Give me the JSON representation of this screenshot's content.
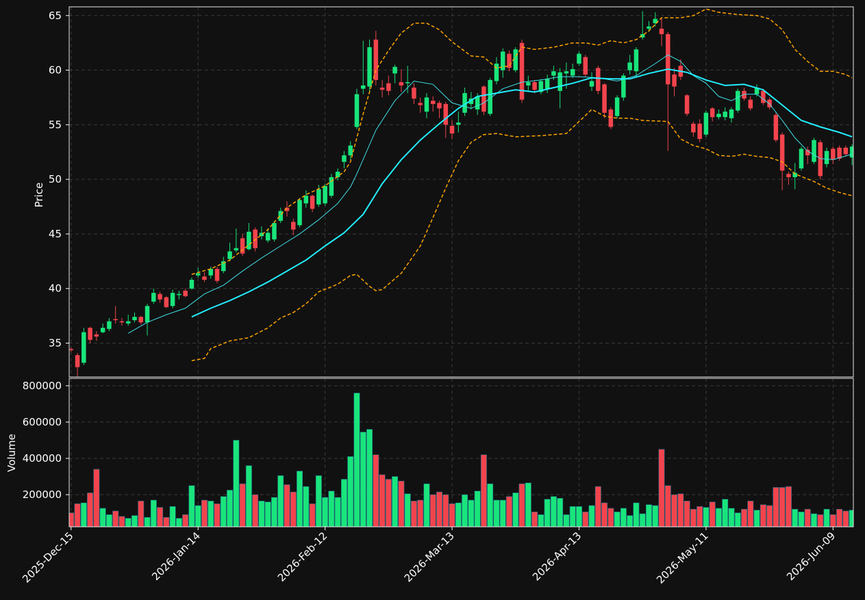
{
  "chart_data": {
    "type": "candlestick",
    "up_color": "#19e57b",
    "down_color": "#f2444d",
    "grid": true,
    "xlim": [
      -0.3,
      123.2
    ],
    "xticks": [
      {
        "value": 0,
        "label": "2025-Dec-15"
      },
      {
        "value": 20,
        "label": "2026-Jan-14"
      },
      {
        "value": 40,
        "label": "2026-Feb-12"
      },
      {
        "value": 60,
        "label": "2026-Mar-13"
      },
      {
        "value": 80,
        "label": "2026-Apr-13"
      },
      {
        "value": 100,
        "label": "2026-May-11"
      },
      {
        "value": 120,
        "label": "2026-Jun-09"
      }
    ],
    "x": [
      0,
      1,
      2,
      3,
      4,
      5,
      6,
      7,
      8,
      9,
      10,
      11,
      12,
      13,
      14,
      15,
      16,
      17,
      18,
      19,
      20,
      21,
      22,
      23,
      24,
      25,
      26,
      27,
      28,
      29,
      30,
      31,
      32,
      33,
      34,
      35,
      36,
      37,
      38,
      39,
      40,
      41,
      42,
      43,
      44,
      45,
      46,
      47,
      48,
      49,
      50,
      51,
      52,
      53,
      54,
      55,
      56,
      57,
      58,
      59,
      60,
      61,
      62,
      63,
      64,
      65,
      66,
      67,
      68,
      69,
      70,
      71,
      72,
      73,
      74,
      75,
      76,
      77,
      78,
      79,
      80,
      81,
      82,
      83,
      84,
      85,
      86,
      87,
      88,
      89,
      90,
      91,
      92,
      93,
      94,
      95,
      96,
      97,
      98,
      99,
      100,
      101,
      102,
      103,
      104,
      105,
      106,
      107,
      108,
      109,
      110,
      111,
      112,
      113,
      114,
      115,
      116,
      117,
      118,
      119,
      120,
      121,
      122,
      123
    ],
    "price": {
      "ylabel": "Price",
      "ylim": [
        31.9,
        65.8
      ],
      "yticks": [
        35,
        40,
        45,
        50,
        55,
        60,
        65
      ]
    },
    "ohlc": [
      [
        34.45,
        34.6,
        34.2,
        34.35
      ],
      [
        33.9,
        34.1,
        31.9,
        32.8
      ],
      [
        33.2,
        36.4,
        33.0,
        36.0
      ],
      [
        36.4,
        36.5,
        35.0,
        35.3
      ],
      [
        35.8,
        36.1,
        35.2,
        35.6
      ],
      [
        36.0,
        36.8,
        35.9,
        36.4
      ],
      [
        36.3,
        37.3,
        36.1,
        37.0
      ],
      [
        37.2,
        38.4,
        36.8,
        37.1
      ],
      [
        37.0,
        37.3,
        36.6,
        36.9
      ],
      [
        36.8,
        37.6,
        36.6,
        37.0
      ],
      [
        37.1,
        37.8,
        36.9,
        37.4
      ],
      [
        37.4,
        37.5,
        36.7,
        36.9
      ],
      [
        36.9,
        38.6,
        35.7,
        38.4
      ],
      [
        38.8,
        40.0,
        38.6,
        39.6
      ],
      [
        39.5,
        39.7,
        38.7,
        39.0
      ],
      [
        39.2,
        39.3,
        38.2,
        38.3
      ],
      [
        38.4,
        39.9,
        38.2,
        39.6
      ],
      [
        39.4,
        39.8,
        39.0,
        39.5
      ],
      [
        39.8,
        40.0,
        39.2,
        39.3
      ],
      [
        40.0,
        41.0,
        39.9,
        40.8
      ],
      [
        41.2,
        41.9,
        41.0,
        41.4
      ],
      [
        41.1,
        41.5,
        40.6,
        40.8
      ],
      [
        41.2,
        42.0,
        40.9,
        41.8
      ],
      [
        41.8,
        42.0,
        40.5,
        40.7
      ],
      [
        41.6,
        42.9,
        41.4,
        42.5
      ],
      [
        42.7,
        44.2,
        42.5,
        43.4
      ],
      [
        43.5,
        45.5,
        43.3,
        43.7
      ],
      [
        44.6,
        45.0,
        43.0,
        43.2
      ],
      [
        43.6,
        46.0,
        43.5,
        45.2
      ],
      [
        45.4,
        45.6,
        43.4,
        43.7
      ],
      [
        44.8,
        45.7,
        44.5,
        45.1
      ],
      [
        44.4,
        45.5,
        44.2,
        45.1
      ],
      [
        44.5,
        46.2,
        44.3,
        46.0
      ],
      [
        46.2,
        47.4,
        46.0,
        47.1
      ],
      [
        47.4,
        48.0,
        46.6,
        47.1
      ],
      [
        46.1,
        46.4,
        44.9,
        45.4
      ],
      [
        45.8,
        48.3,
        45.6,
        48.1
      ],
      [
        47.8,
        49.0,
        47.4,
        48.5
      ],
      [
        48.5,
        48.6,
        47.0,
        47.3
      ],
      [
        47.7,
        49.5,
        47.5,
        49.1
      ],
      [
        47.8,
        49.6,
        47.6,
        49.4
      ],
      [
        48.5,
        50.5,
        48.3,
        50.2
      ],
      [
        50.2,
        51.0,
        49.9,
        50.7
      ],
      [
        51.6,
        52.6,
        51.0,
        52.2
      ],
      [
        52.2,
        53.5,
        51.8,
        53.1
      ],
      [
        54.8,
        58.3,
        54.6,
        57.8
      ],
      [
        58.3,
        62.7,
        57.8,
        58.6
      ],
      [
        58.5,
        62.8,
        58.0,
        62.1
      ],
      [
        62.8,
        63.6,
        58.6,
        59.1
      ],
      [
        58.4,
        59.1,
        57.5,
        58.2
      ],
      [
        58.8,
        59.5,
        57.7,
        58.1
      ],
      [
        59.7,
        60.5,
        58.8,
        60.3
      ],
      [
        58.9,
        60.1,
        58.0,
        58.6
      ],
      [
        58.8,
        60.4,
        57.9,
        58.9
      ],
      [
        58.4,
        58.8,
        56.9,
        57.4
      ],
      [
        57.0,
        57.5,
        56.1,
        56.8
      ],
      [
        56.2,
        57.9,
        55.6,
        57.5
      ],
      [
        57.2,
        57.6,
        56.2,
        56.9
      ],
      [
        57.0,
        57.2,
        55.6,
        56.5
      ],
      [
        56.9,
        57.1,
        53.8,
        55.0
      ],
      [
        54.9,
        55.4,
        53.7,
        54.2
      ],
      [
        55.0,
        56.2,
        54.3,
        55.2
      ],
      [
        56.1,
        58.4,
        55.8,
        57.9
      ],
      [
        56.9,
        58.0,
        56.4,
        57.4
      ],
      [
        56.4,
        57.9,
        55.9,
        57.6
      ],
      [
        58.5,
        58.6,
        55.9,
        56.2
      ],
      [
        56.0,
        59.3,
        55.8,
        59.1
      ],
      [
        59.0,
        61.2,
        58.7,
        60.6
      ],
      [
        60.0,
        62.0,
        59.3,
        61.7
      ],
      [
        61.5,
        61.8,
        59.9,
        60.2
      ],
      [
        60.0,
        62.1,
        59.8,
        61.9
      ],
      [
        62.5,
        62.8,
        57.0,
        57.3
      ],
      [
        58.6,
        59.5,
        58.0,
        58.9
      ],
      [
        58.9,
        59.1,
        57.9,
        58.2
      ],
      [
        58.0,
        59.2,
        57.8,
        59.0
      ],
      [
        58.3,
        59.6,
        57.9,
        59.2
      ],
      [
        59.5,
        60.4,
        59.1,
        59.9
      ],
      [
        58.1,
        60.2,
        56.5,
        59.8
      ],
      [
        59.7,
        60.7,
        58.3,
        59.9
      ],
      [
        59.5,
        60.6,
        59.3,
        60.1
      ],
      [
        60.6,
        61.7,
        60.4,
        61.5
      ],
      [
        61.2,
        61.4,
        59.4,
        59.6
      ],
      [
        58.5,
        59.8,
        58.1,
        59.0
      ],
      [
        60.2,
        60.4,
        57.8,
        58.1
      ],
      [
        58.7,
        58.8,
        55.6,
        56.1
      ],
      [
        56.4,
        56.6,
        54.6,
        54.8
      ],
      [
        55.8,
        57.7,
        55.6,
        57.5
      ],
      [
        57.5,
        59.7,
        57.2,
        59.5
      ],
      [
        60.0,
        61.4,
        59.6,
        60.7
      ],
      [
        59.9,
        62.1,
        59.3,
        61.9
      ],
      [
        63.0,
        65.4,
        62.8,
        63.3
      ],
      [
        63.8,
        64.5,
        63.5,
        64.0
      ],
      [
        64.3,
        65.3,
        64.0,
        64.7
      ],
      [
        63.8,
        64.8,
        62.2,
        63.3
      ],
      [
        63.3,
        63.5,
        52.6,
        58.7
      ],
      [
        59.6,
        60.2,
        57.6,
        58.5
      ],
      [
        60.4,
        61.0,
        59.1,
        59.4
      ],
      [
        57.7,
        57.8,
        55.8,
        56.0
      ],
      [
        55.1,
        55.3,
        53.9,
        54.3
      ],
      [
        55.1,
        55.5,
        53.4,
        53.7
      ],
      [
        54.1,
        56.3,
        53.9,
        56.1
      ],
      [
        56.5,
        56.6,
        55.3,
        55.7
      ],
      [
        55.7,
        56.4,
        55.5,
        56.0
      ],
      [
        55.7,
        56.6,
        55.4,
        56.2
      ],
      [
        55.6,
        56.6,
        55.2,
        56.4
      ],
      [
        56.3,
        58.3,
        56.1,
        58.1
      ],
      [
        58.1,
        58.4,
        57.2,
        57.4
      ],
      [
        57.3,
        57.6,
        56.3,
        56.5
      ],
      [
        57.8,
        58.7,
        57.6,
        58.4
      ],
      [
        58.1,
        58.3,
        56.8,
        57.0
      ],
      [
        57.3,
        57.5,
        56.4,
        56.6
      ],
      [
        55.9,
        56.1,
        53.4,
        53.6
      ],
      [
        54.1,
        54.3,
        49.0,
        50.8
      ],
      [
        50.5,
        50.7,
        49.5,
        50.2
      ],
      [
        50.2,
        51.5,
        49.1,
        50.6
      ],
      [
        51.0,
        53.0,
        50.8,
        52.8
      ],
      [
        52.7,
        53.0,
        51.4,
        52.2
      ],
      [
        51.6,
        53.8,
        51.4,
        53.6
      ],
      [
        53.4,
        53.6,
        50.0,
        50.3
      ],
      [
        51.4,
        52.9,
        51.1,
        52.6
      ],
      [
        52.8,
        53.0,
        51.4,
        51.8
      ],
      [
        52.9,
        53.1,
        51.7,
        51.9
      ],
      [
        52.9,
        53.1,
        52.1,
        52.3
      ],
      [
        52.0,
        53.2,
        51.3,
        53.0
      ]
    ],
    "lines": [
      {
        "color": "#40e0e8",
        "width": 1,
        "dash": false,
        "x": [
          9,
          12,
          15,
          18,
          21,
          24,
          27,
          30,
          33,
          36,
          39,
          42,
          44,
          45,
          48,
          51,
          54,
          57,
          60,
          63,
          65,
          68,
          71,
          74,
          77,
          80,
          83,
          86,
          89,
          92,
          94,
          96,
          98,
          100,
          102,
          104,
          106,
          108,
          110,
          112,
          114,
          116,
          118,
          120,
          123
        ],
        "values": [
          35.9,
          36.9,
          37.6,
          38.2,
          39.5,
          40.3,
          41.6,
          42.8,
          43.9,
          45.0,
          46.3,
          47.8,
          49.3,
          50.5,
          54.5,
          57.2,
          59.0,
          58.7,
          57.0,
          56.5,
          57.0,
          58.3,
          58.9,
          59.1,
          59.4,
          59.4,
          59.3,
          59.0,
          59.5,
          60.6,
          61.4,
          60.8,
          59.5,
          58.8,
          57.6,
          57.2,
          57.8,
          57.8,
          56.9,
          55.4,
          53.8,
          52.6,
          51.9,
          51.8,
          52.3
        ]
      },
      {
        "color": "#22eeff",
        "width": 2,
        "dash": false,
        "x": [
          19,
          22,
          25,
          28,
          31,
          34,
          37,
          40,
          43,
          46,
          49,
          52,
          55,
          58,
          61,
          64,
          67,
          70,
          73,
          76,
          79,
          82,
          85,
          88,
          91,
          94,
          97,
          100,
          103,
          106,
          109,
          112,
          115,
          118,
          121,
          123
        ],
        "values": [
          37.4,
          38.2,
          38.9,
          39.7,
          40.6,
          41.6,
          42.6,
          43.9,
          45.1,
          46.8,
          49.6,
          51.8,
          53.6,
          55.1,
          56.5,
          57.6,
          57.9,
          58.2,
          58.0,
          58.4,
          58.8,
          59.3,
          59.2,
          59.2,
          59.7,
          60.1,
          59.8,
          59.1,
          58.6,
          58.7,
          58.2,
          56.8,
          55.4,
          54.8,
          54.3,
          53.9
        ]
      },
      {
        "color": "#ffa500",
        "width": 1.5,
        "dash": true,
        "x": [
          19,
          22,
          25,
          28,
          31,
          34,
          37,
          40,
          43,
          44,
          46,
          48,
          50,
          52,
          54,
          56,
          58,
          60,
          63,
          65,
          67,
          69,
          71,
          73,
          76,
          79,
          81,
          83,
          85,
          87,
          89,
          91,
          93,
          96,
          98,
          100,
          102,
          105,
          108,
          110,
          112,
          114,
          116,
          118,
          120,
          122,
          123
        ],
        "values": [
          41.3,
          41.8,
          42.6,
          44.0,
          45.4,
          47.4,
          48.6,
          49.4,
          50.7,
          51.6,
          56.0,
          60.0,
          61.8,
          63.4,
          64.3,
          64.3,
          63.7,
          62.6,
          61.3,
          61.2,
          60.2,
          60.4,
          62.1,
          61.9,
          62.1,
          62.5,
          62.5,
          62.3,
          62.7,
          62.5,
          62.8,
          63.6,
          64.8,
          64.8,
          65.0,
          65.6,
          65.3,
          65.1,
          65.0,
          64.7,
          63.7,
          61.9,
          60.8,
          59.9,
          59.9,
          59.6,
          59.3
        ]
      },
      {
        "color": "#ffa500",
        "width": 1.5,
        "dash": true,
        "x": [
          19,
          21,
          22,
          25,
          28,
          31,
          33,
          35,
          37,
          39,
          42,
          44,
          45,
          47,
          48,
          49,
          52,
          55,
          57,
          59,
          61,
          63,
          65,
          67,
          70,
          74,
          78,
          80,
          82,
          84,
          86,
          88,
          90,
          94,
          96,
          98,
          100,
          102,
          104,
          106,
          108,
          110,
          112,
          114,
          117,
          119,
          121,
          123
        ],
        "values": [
          33.4,
          33.6,
          34.5,
          35.2,
          35.5,
          36.4,
          37.3,
          37.8,
          38.6,
          39.7,
          40.4,
          41.2,
          41.3,
          40.2,
          39.8,
          39.9,
          41.4,
          43.9,
          46.5,
          49.2,
          51.7,
          53.4,
          54.1,
          54.2,
          53.9,
          54.0,
          54.2,
          55.3,
          56.4,
          55.8,
          55.6,
          55.6,
          55.4,
          55.3,
          53.7,
          53.1,
          52.8,
          52.2,
          52.1,
          52.3,
          52.1,
          52.0,
          51.6,
          50.5,
          49.8,
          49.2,
          48.8,
          48.5
        ]
      }
    ],
    "volume": {
      "ylabel": "Volume",
      "ylim": [
        23000,
        841000
      ],
      "yticks": [
        200000,
        400000,
        600000,
        800000
      ],
      "values": [
        100000,
        150000,
        155000,
        210000,
        340000,
        125000,
        90000,
        110000,
        80000,
        70000,
        85000,
        165000,
        75000,
        170000,
        130000,
        75000,
        135000,
        70000,
        90000,
        250000,
        140000,
        170000,
        165000,
        150000,
        190000,
        225000,
        500000,
        260000,
        360000,
        200000,
        165000,
        160000,
        185000,
        305000,
        255000,
        215000,
        330000,
        245000,
        150000,
        305000,
        185000,
        220000,
        185000,
        285000,
        410000,
        760000,
        545000,
        560000,
        420000,
        310000,
        285000,
        300000,
        275000,
        205000,
        165000,
        170000,
        260000,
        200000,
        215000,
        200000,
        150000,
        155000,
        200000,
        170000,
        220000,
        420000,
        260000,
        170000,
        170000,
        190000,
        210000,
        260000,
        265000,
        105000,
        90000,
        175000,
        190000,
        180000,
        90000,
        135000,
        135000,
        105000,
        140000,
        245000,
        155000,
        125000,
        105000,
        125000,
        85000,
        155000,
        95000,
        145000,
        140000,
        450000,
        250000,
        200000,
        205000,
        165000,
        120000,
        135000,
        130000,
        160000,
        125000,
        175000,
        125000,
        100000,
        120000,
        165000,
        115000,
        145000,
        140000,
        240000,
        240000,
        245000,
        120000,
        105000,
        120000,
        95000,
        90000,
        120000,
        90000,
        120000,
        110000,
        115000
      ]
    }
  }
}
